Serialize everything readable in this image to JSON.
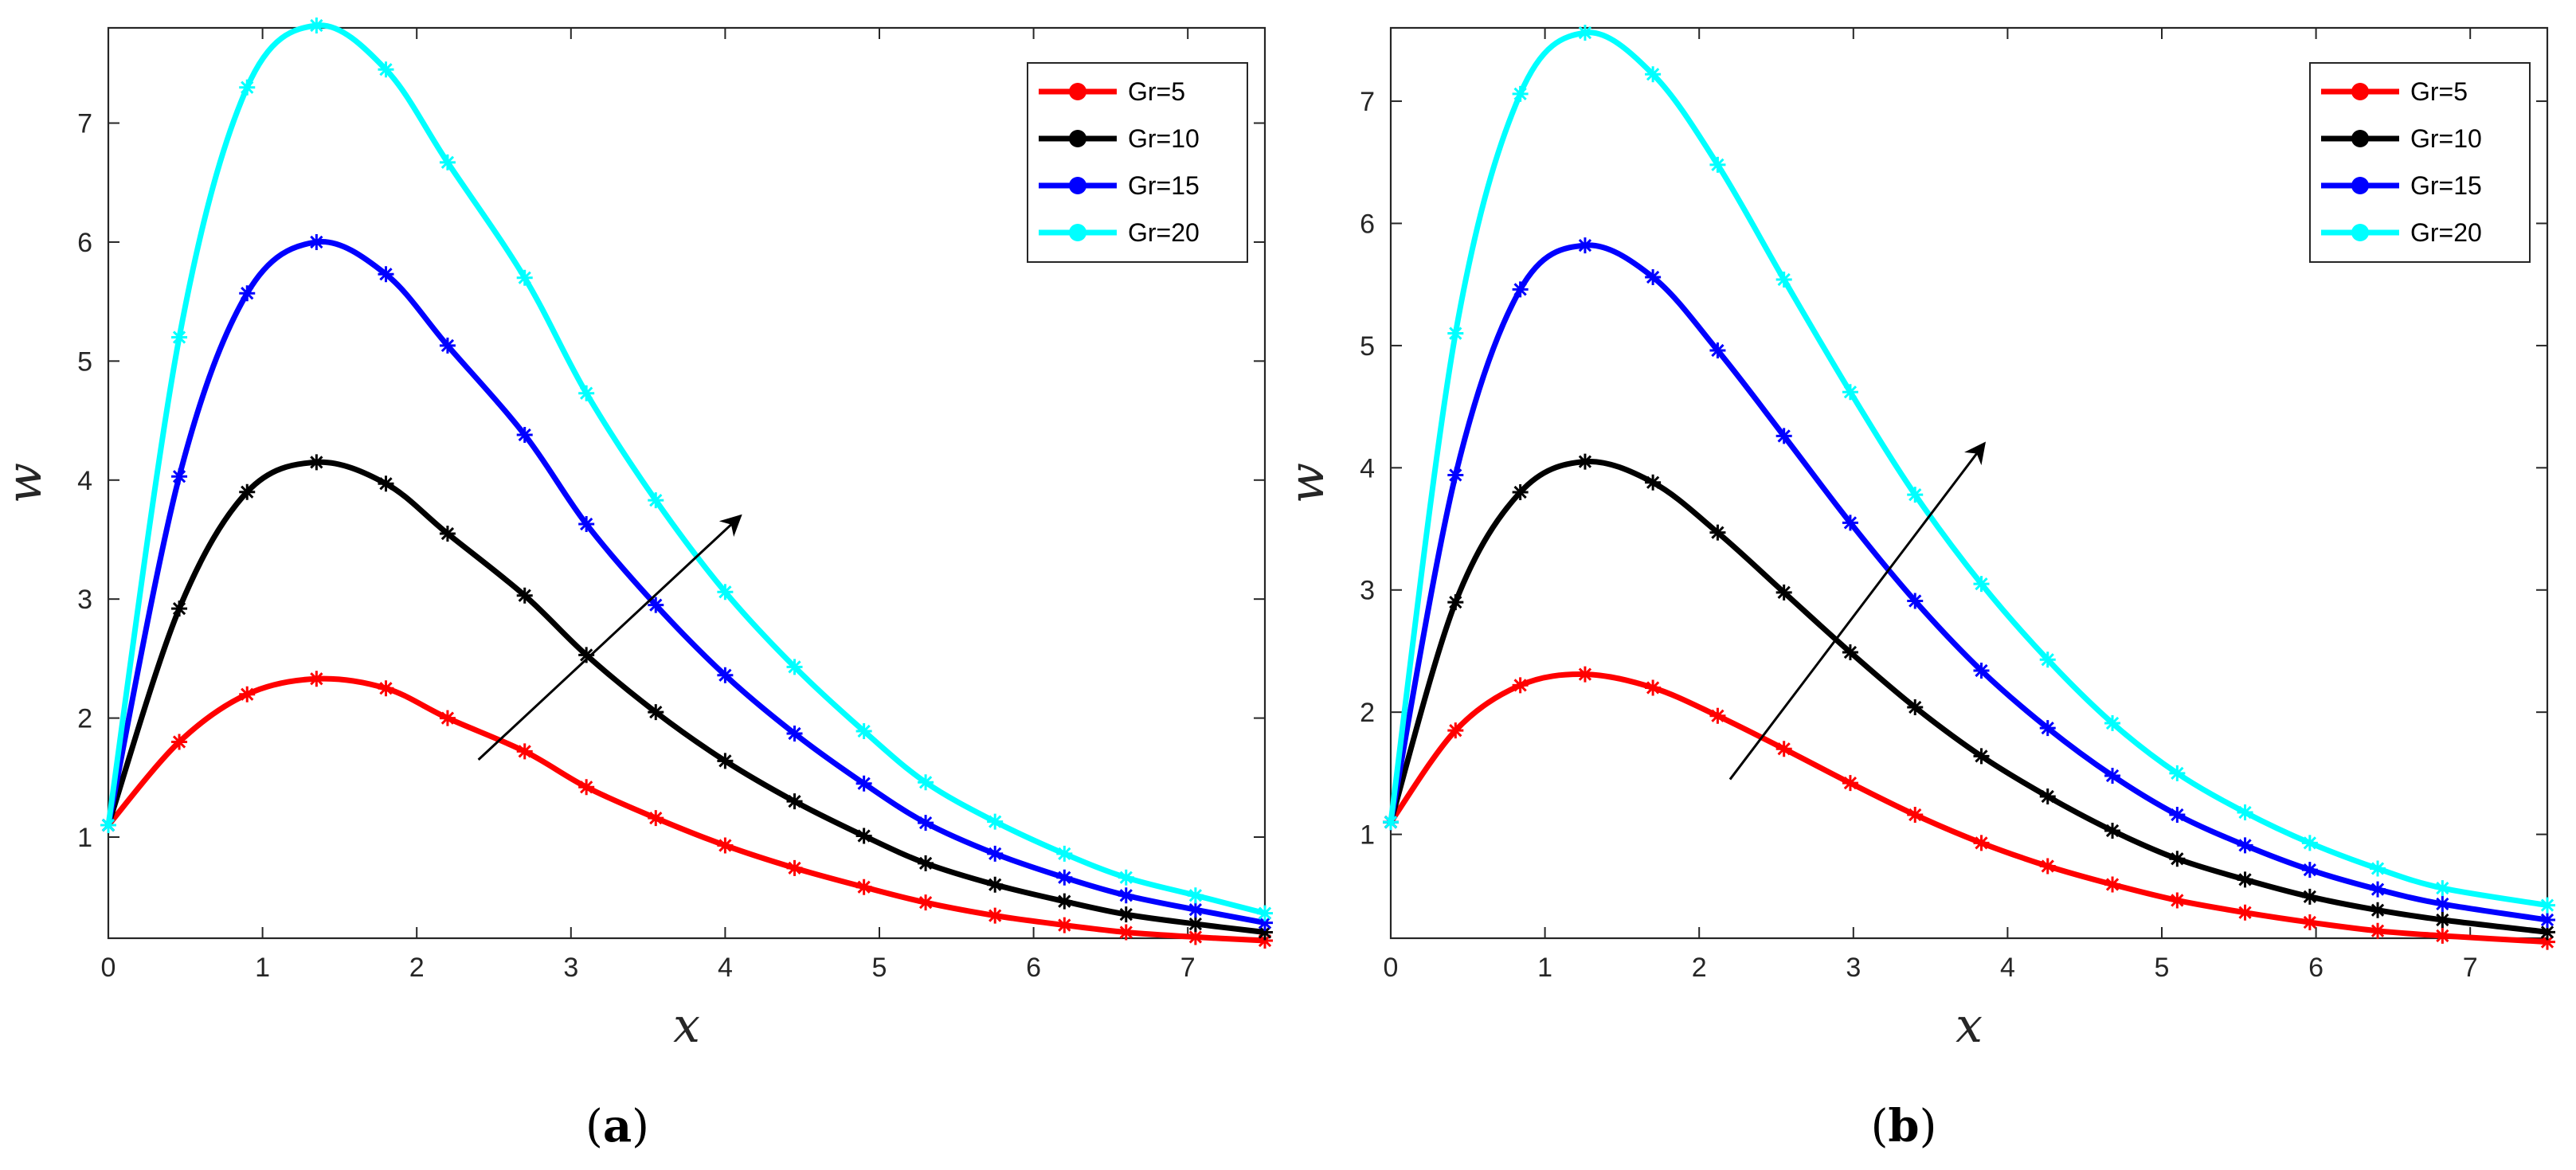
{
  "chart_data": [
    {
      "type": "line",
      "panel_label": "(a)",
      "panel_letter": "a",
      "xlabel": "x",
      "ylabel": "w",
      "xlim": [
        0,
        7.5
      ],
      "ylim": [
        0.15,
        7.8
      ],
      "xticks": [
        0,
        1,
        2,
        3,
        4,
        5,
        6,
        7
      ],
      "yticks": [
        1,
        2,
        3,
        4,
        5,
        6,
        7
      ],
      "grid": false,
      "legend_position": "top-right",
      "annotation": "arrow indicating increasing Gr",
      "arrow": {
        "from": [
          2.4,
          1.65
        ],
        "to": [
          4.1,
          3.7
        ]
      },
      "x": [
        0,
        0.46,
        0.9,
        1.35,
        1.8,
        2.2,
        2.7,
        3.1,
        3.55,
        4.0,
        4.45,
        4.9,
        5.3,
        5.75,
        6.2,
        6.6,
        7.05,
        7.5
      ],
      "series": [
        {
          "name": "Gr=5",
          "color": "#ff0000",
          "values": [
            1.1,
            1.8,
            2.2,
            2.33,
            2.25,
            2.0,
            1.72,
            1.42,
            1.16,
            0.93,
            0.74,
            0.58,
            0.45,
            0.34,
            0.26,
            0.2,
            0.16,
            0.13
          ]
        },
        {
          "name": "Gr=10",
          "color": "#000000",
          "values": [
            1.1,
            2.92,
            3.9,
            4.15,
            3.97,
            3.55,
            3.03,
            2.53,
            2.05,
            1.64,
            1.3,
            1.01,
            0.78,
            0.6,
            0.46,
            0.35,
            0.27,
            0.2
          ]
        },
        {
          "name": "Gr=15",
          "color": "#0000ff",
          "values": [
            1.1,
            4.03,
            5.57,
            6.0,
            5.73,
            5.13,
            4.38,
            3.63,
            2.95,
            2.36,
            1.87,
            1.45,
            1.12,
            0.86,
            0.66,
            0.51,
            0.39,
            0.28
          ]
        },
        {
          "name": "Gr=20",
          "color": "#00ffff",
          "values": [
            1.1,
            5.2,
            7.3,
            7.82,
            7.45,
            6.67,
            5.7,
            4.73,
            3.83,
            3.06,
            2.43,
            1.89,
            1.46,
            1.13,
            0.86,
            0.66,
            0.51,
            0.36
          ]
        }
      ]
    },
    {
      "type": "line",
      "panel_label": "(b)",
      "panel_letter": "b",
      "xlabel": "x",
      "ylabel": "w",
      "xlim": [
        0,
        7.5
      ],
      "ylim": [
        0.15,
        7.6
      ],
      "xticks": [
        0,
        1,
        2,
        3,
        4,
        5,
        6,
        7
      ],
      "yticks": [
        1,
        2,
        3,
        4,
        5,
        6,
        7
      ],
      "grid": false,
      "legend_position": "top-right",
      "annotation": "arrow indicating increasing Gr",
      "arrow": {
        "from": [
          2.2,
          1.45
        ],
        "to": [
          3.85,
          4.2
        ]
      },
      "x": [
        0,
        0.42,
        0.84,
        1.26,
        1.7,
        2.12,
        2.55,
        2.98,
        3.4,
        3.83,
        4.26,
        4.68,
        5.1,
        5.54,
        5.96,
        6.4,
        6.82,
        7.5
      ],
      "series": [
        {
          "name": "Gr=5",
          "color": "#ff0000",
          "values": [
            1.1,
            1.85,
            2.22,
            2.31,
            2.2,
            1.97,
            1.7,
            1.42,
            1.16,
            0.93,
            0.74,
            0.59,
            0.46,
            0.36,
            0.28,
            0.21,
            0.17,
            0.12
          ]
        },
        {
          "name": "Gr=10",
          "color": "#000000",
          "values": [
            1.1,
            2.9,
            3.8,
            4.05,
            3.88,
            3.47,
            2.98,
            2.49,
            2.04,
            1.64,
            1.31,
            1.03,
            0.8,
            0.63,
            0.49,
            0.38,
            0.3,
            0.2
          ]
        },
        {
          "name": "Gr=15",
          "color": "#0000ff",
          "values": [
            1.1,
            3.94,
            5.46,
            5.82,
            5.56,
            4.96,
            4.26,
            3.55,
            2.91,
            2.34,
            1.87,
            1.48,
            1.16,
            0.91,
            0.71,
            0.55,
            0.43,
            0.3
          ]
        },
        {
          "name": "Gr=20",
          "color": "#00ffff",
          "values": [
            1.1,
            5.1,
            7.06,
            7.56,
            7.22,
            6.48,
            5.54,
            4.62,
            3.78,
            3.05,
            2.43,
            1.91,
            1.5,
            1.18,
            0.93,
            0.72,
            0.56,
            0.42
          ]
        }
      ]
    }
  ]
}
